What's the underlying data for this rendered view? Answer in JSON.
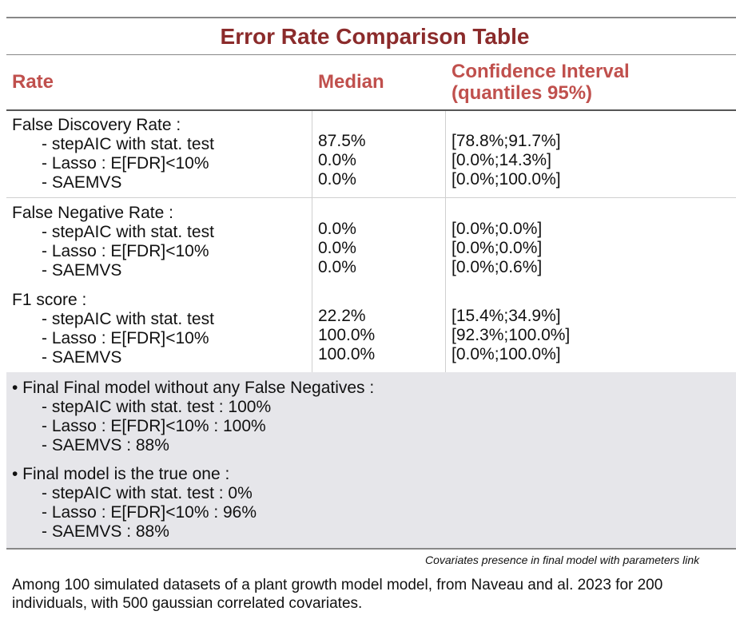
{
  "title": "Error Rate Comparison Table",
  "columns": [
    "Rate",
    "Median",
    "Confidence Interval (quantiles 95%)"
  ],
  "sections": [
    {
      "label": "False Discovery Rate :",
      "rows": [
        {
          "name": "- stepAIC with stat. test",
          "median": "87.5%",
          "ci": "[78.8%;91.7%]"
        },
        {
          "name": "- Lasso : E[FDR]<10%",
          "median": "0.0%",
          "ci": "[0.0%;14.3%]"
        },
        {
          "name": "- SAEMVS",
          "median": "0.0%",
          "ci": "[0.0%;100.0%]"
        }
      ]
    },
    {
      "label": "False Negative Rate :",
      "rows": [
        {
          "name": "- stepAIC with stat. test",
          "median": "0.0%",
          "ci": "[0.0%;0.0%]"
        },
        {
          "name": "- Lasso : E[FDR]<10%",
          "median": "0.0%",
          "ci": "[0.0%;0.0%]"
        },
        {
          "name": "- SAEMVS",
          "median": "0.0%",
          "ci": "[0.0%;0.6%]"
        }
      ]
    },
    {
      "label": "F1 score :",
      "rows": [
        {
          "name": "- stepAIC with stat. test",
          "median": "22.2%",
          "ci": "[15.4%;34.9%]"
        },
        {
          "name": "- Lasso : E[FDR]<10%",
          "median": "100.0%",
          "ci": "[92.3%;100.0%]"
        },
        {
          "name": "- SAEMVS",
          "median": "100.0%",
          "ci": "[0.0%;100.0%]"
        }
      ]
    }
  ],
  "summary": [
    {
      "label": "• Final Final model without any False Negatives :",
      "items": [
        "- stepAIC with stat. test : 100%",
        "- Lasso : E[FDR]<10% : 100%",
        "- SAEMVS : 88%"
      ]
    },
    {
      "label": "• Final model is the true one :",
      "items": [
        "- stepAIC with stat. test : 0%",
        "- Lasso : E[FDR]<10% : 96%",
        "- SAEMVS : 88%"
      ]
    }
  ],
  "footnote": "Covariates presence in final model with parameters link",
  "note": "Among 100 simulated datasets of a plant growth model model, from Naveau and al. 2023 for 200 individuals, with 500 gaussian correlated covariates."
}
